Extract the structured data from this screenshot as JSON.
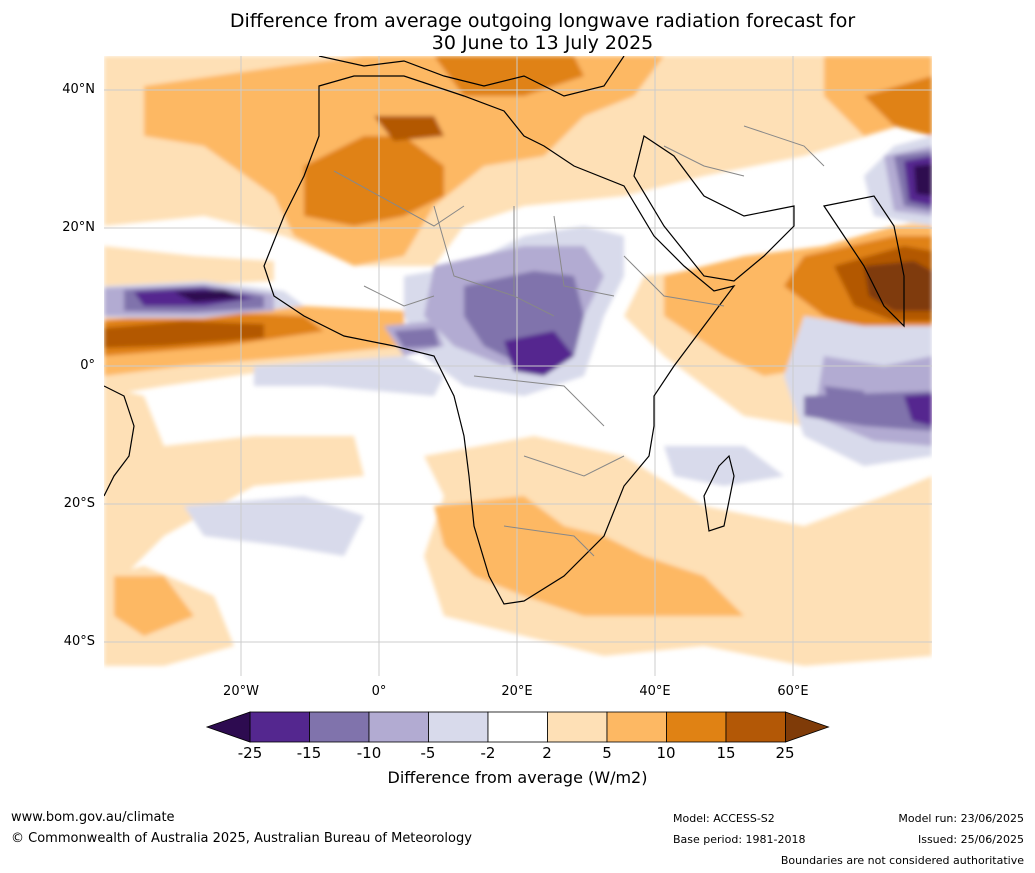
{
  "title": {
    "line1": "Difference from average outgoing longwave radiation forecast for",
    "line2": "30 June to 13 July 2025"
  },
  "map": {
    "lat_labels": [
      "40°N",
      "20°N",
      "0°",
      "20°S",
      "40°S"
    ],
    "lon_labels": [
      "20°W",
      "0°",
      "20°E",
      "40°E",
      "60°E"
    ]
  },
  "colorbar": {
    "ticks": [
      "-25",
      "-15",
      "-10",
      "-5",
      "-2",
      "2",
      "5",
      "10",
      "15",
      "25"
    ],
    "title": "Difference from average (W/m2)",
    "colors": {
      "below_-25": "#2d0b50",
      "-25_-15": "#54278f",
      "-15_-10": "#8073ac",
      "-10_-5": "#b2abd2",
      "-5_-2": "#d8daeb",
      "-2_2": "#ffffff",
      "2_5": "#fee0b6",
      "5_10": "#fdb863",
      "10_15": "#e08214",
      "15_25": "#b35806",
      "above_25": "#7f3b08"
    }
  },
  "footer": {
    "url": "www.bom.gov.au/climate",
    "copyright": "© Commonwealth of Australia 2025, Australian Bureau of Meteorology",
    "model": "Model: ACCESS-S2",
    "base_period": "Base period: 1981-2018",
    "model_run": "Model run: 23/06/2025",
    "issued": "Issued: 25/06/2025",
    "disclaimer": "Boundaries are not considered authoritative"
  }
}
